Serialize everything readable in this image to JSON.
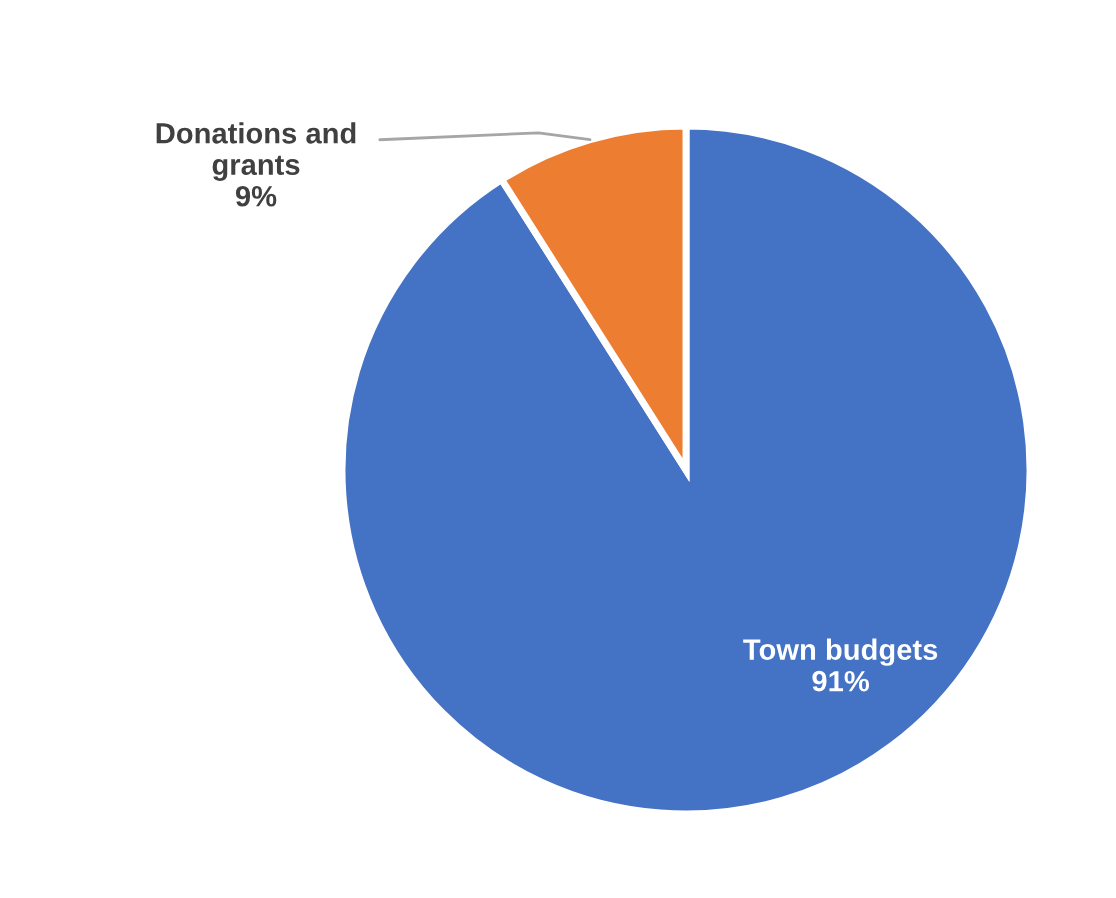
{
  "chart_data": {
    "type": "pie",
    "categories": [
      "Town budgets",
      "Donations and\ngrants"
    ],
    "values": [
      91,
      9
    ],
    "value_labels": [
      "91%",
      "9%"
    ],
    "colors": [
      "#4472c4",
      "#ed7d31"
    ]
  }
}
